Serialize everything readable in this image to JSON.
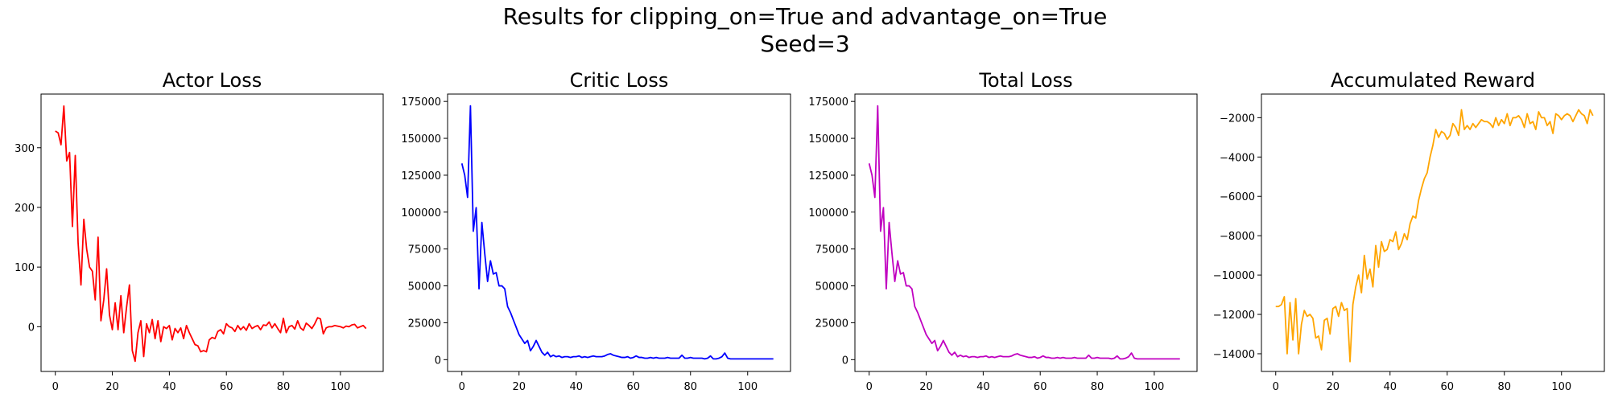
{
  "figure": {
    "suptitle_line1": "Results for clipping_on=True and advantage_on=True",
    "suptitle_line2": "Seed=3"
  },
  "chart_data": [
    {
      "type": "line",
      "title": "Actor Loss",
      "color": "#ff0000",
      "xlim": [
        -5,
        115
      ],
      "ylim": [
        -75,
        390
      ],
      "xticks": [
        0,
        20,
        40,
        60,
        80,
        100
      ],
      "yticks": [
        0,
        100,
        200,
        300
      ],
      "ytick_labels": [
        "0",
        "100",
        "200",
        "300"
      ],
      "x_start": 0,
      "values": [
        328,
        325,
        305,
        370,
        278,
        292,
        168,
        287,
        140,
        70,
        180,
        130,
        100,
        93,
        45,
        150,
        10,
        45,
        97,
        20,
        -5,
        40,
        -5,
        52,
        -10,
        33,
        70,
        -40,
        -58,
        -10,
        10,
        -50,
        5,
        -10,
        12,
        -20,
        10,
        -25,
        0,
        -3,
        2,
        -22,
        -3,
        -10,
        -2,
        -20,
        2,
        -10,
        -20,
        -30,
        -32,
        -42,
        -40,
        -42,
        -22,
        -18,
        -20,
        -8,
        -5,
        -12,
        5,
        0,
        -2,
        -8,
        2,
        -5,
        0,
        -6,
        5,
        -3,
        0,
        2,
        -5,
        3,
        2,
        8,
        -2,
        5,
        -3,
        -10,
        14,
        -10,
        0,
        2,
        -4,
        10,
        -2,
        -6,
        6,
        2,
        -3,
        5,
        15,
        13,
        -12,
        -2,
        0,
        0,
        2,
        1,
        0,
        -2,
        1,
        0,
        3,
        4,
        -2,
        0,
        2,
        -3
      ]
    },
    {
      "type": "line",
      "title": "Critic Loss",
      "color": "#0000ff",
      "xlim": [
        -5,
        115
      ],
      "ylim": [
        -8000,
        180000
      ],
      "xticks": [
        0,
        20,
        40,
        60,
        80,
        100
      ],
      "yticks": [
        0,
        25000,
        50000,
        75000,
        100000,
        125000,
        150000,
        175000
      ],
      "ytick_labels": [
        "0",
        "25000",
        "50000",
        "75000",
        "100000",
        "125000",
        "150000",
        "175000"
      ],
      "x_start": 0,
      "values": [
        133000,
        125000,
        110000,
        172000,
        87000,
        103000,
        48000,
        93000,
        72000,
        53000,
        67000,
        58000,
        59000,
        50000,
        50000,
        48000,
        36000,
        32000,
        27000,
        22000,
        17000,
        14000,
        11000,
        13000,
        6000,
        9000,
        13000,
        9000,
        5000,
        3000,
        5000,
        2000,
        3000,
        2000,
        2500,
        1500,
        2000,
        2000,
        1500,
        2000,
        2000,
        2500,
        1500,
        2000,
        1500,
        2000,
        2500,
        2000,
        2000,
        2000,
        2500,
        3500,
        4000,
        3000,
        2500,
        2000,
        1500,
        1500,
        2000,
        1000,
        1500,
        2500,
        1500,
        1500,
        1000,
        1000,
        1500,
        1000,
        1500,
        1000,
        1000,
        1000,
        1500,
        1000,
        1000,
        1000,
        1000,
        3000,
        1000,
        1000,
        1500,
        1000,
        1000,
        1000,
        1000,
        500,
        1000,
        2500,
        500,
        500,
        1000,
        2000,
        4500,
        1000,
        500,
        500,
        500,
        500,
        500,
        500,
        500,
        500,
        500,
        500,
        500,
        500,
        500,
        500,
        500,
        500
      ]
    },
    {
      "type": "line",
      "title": "Total Loss",
      "color": "#c000c0",
      "xlim": [
        -5,
        115
      ],
      "ylim": [
        -8000,
        180000
      ],
      "xticks": [
        0,
        20,
        40,
        60,
        80,
        100
      ],
      "yticks": [
        0,
        25000,
        50000,
        75000,
        100000,
        125000,
        150000,
        175000
      ],
      "ytick_labels": [
        "0",
        "25000",
        "50000",
        "75000",
        "100000",
        "125000",
        "150000",
        "175000"
      ],
      "x_start": 0,
      "values": [
        133000,
        125000,
        110000,
        172000,
        87000,
        103000,
        48000,
        93000,
        72000,
        53000,
        67000,
        58000,
        59000,
        50000,
        50000,
        48000,
        36000,
        32000,
        27000,
        22000,
        17000,
        14000,
        11000,
        13000,
        6000,
        9000,
        13000,
        9000,
        5000,
        3000,
        5000,
        2000,
        3000,
        2000,
        2500,
        1500,
        2000,
        2000,
        1500,
        2000,
        2000,
        2500,
        1500,
        2000,
        1500,
        2000,
        2500,
        2000,
        2000,
        2000,
        2500,
        3500,
        4000,
        3000,
        2500,
        2000,
        1500,
        1500,
        2000,
        1000,
        1500,
        2500,
        1500,
        1500,
        1000,
        1000,
        1500,
        1000,
        1500,
        1000,
        1000,
        1000,
        1500,
        1000,
        1000,
        1000,
        1000,
        3000,
        1000,
        1000,
        1500,
        1000,
        1000,
        1000,
        1000,
        500,
        1000,
        2500,
        500,
        500,
        1000,
        2000,
        4500,
        1000,
        500,
        500,
        500,
        500,
        500,
        500,
        500,
        500,
        500,
        500,
        500,
        500,
        500,
        500,
        500,
        500
      ]
    },
    {
      "type": "line",
      "title": "Accumulated Reward",
      "color": "#ffa500",
      "xlim": [
        -5,
        115
      ],
      "ylim": [
        -14900,
        -800
      ],
      "xticks": [
        0,
        20,
        40,
        60,
        80,
        100
      ],
      "yticks": [
        -14000,
        -12000,
        -10000,
        -8000,
        -6000,
        -4000,
        -2000
      ],
      "ytick_labels": [
        "−14000",
        "−12000",
        "−10000",
        "−8000",
        "−6000",
        "−4000",
        "−2000"
      ],
      "x_start": 0,
      "values": [
        -11600,
        -11600,
        -11500,
        -11100,
        -14000,
        -11400,
        -13300,
        -11200,
        -14000,
        -12500,
        -11800,
        -12100,
        -12000,
        -12200,
        -13200,
        -13100,
        -13800,
        -12300,
        -12200,
        -13000,
        -11700,
        -11600,
        -12100,
        -11400,
        -11800,
        -11700,
        -14400,
        -11500,
        -10600,
        -10000,
        -10900,
        -9000,
        -10200,
        -9700,
        -10600,
        -8500,
        -9600,
        -8300,
        -8800,
        -8700,
        -8200,
        -8300,
        -7800,
        -8700,
        -8400,
        -7900,
        -8200,
        -7400,
        -7000,
        -7100,
        -6200,
        -5600,
        -5100,
        -4800,
        -4000,
        -3400,
        -2600,
        -3000,
        -2700,
        -2800,
        -3100,
        -2900,
        -2300,
        -2500,
        -2900,
        -1600,
        -2600,
        -2400,
        -2600,
        -2300,
        -2500,
        -2300,
        -2100,
        -2200,
        -2200,
        -2300,
        -2500,
        -2000,
        -2400,
        -2100,
        -2300,
        -1800,
        -2400,
        -2000,
        -2000,
        -1900,
        -2100,
        -2500,
        -1800,
        -2300,
        -2200,
        -2600,
        -1700,
        -2000,
        -2000,
        -2400,
        -2200,
        -2800,
        -1800,
        -1900,
        -2100,
        -1900,
        -1800,
        -1900,
        -2200,
        -1900,
        -1600,
        -1800,
        -1900,
        -2300,
        -1600,
        -1900
      ]
    }
  ]
}
